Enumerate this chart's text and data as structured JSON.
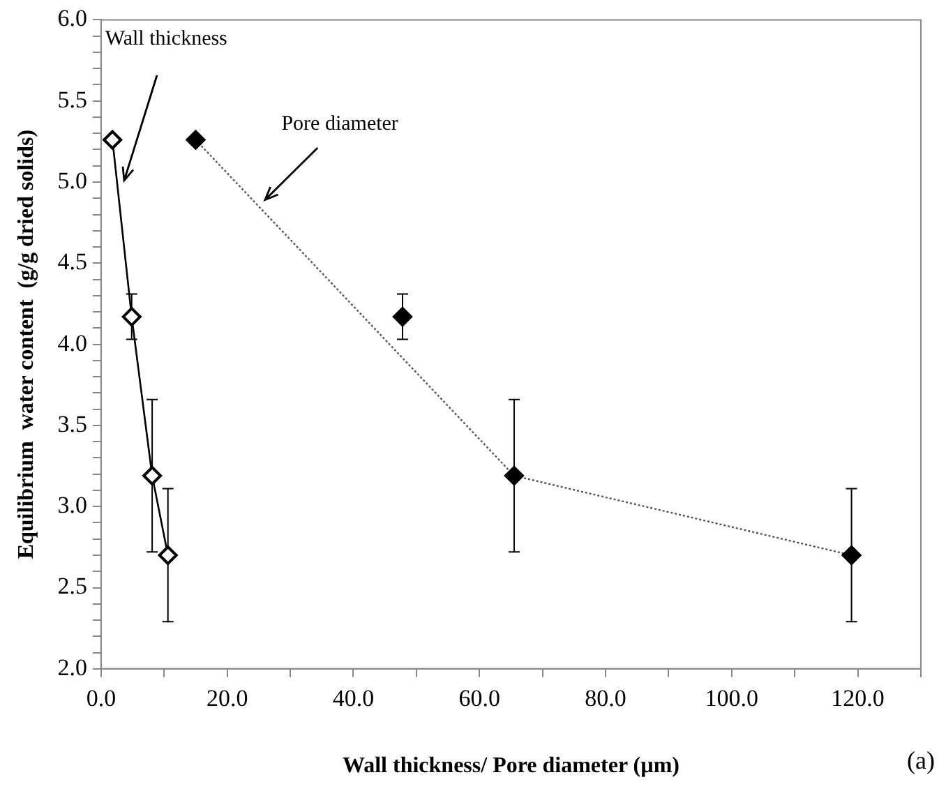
{
  "chart_data": {
    "type": "scatter",
    "xlabel": "Wall thickness/ Pore diameter (µm)",
    "ylabel": "Equilibrium  water content  (g/g dried solids)",
    "xlim": [
      0,
      130
    ],
    "xticks": [
      {
        "value": 0,
        "label": "0.0"
      },
      {
        "value": 10,
        "label": null
      },
      {
        "value": 20,
        "label": "20.0"
      },
      {
        "value": 30,
        "label": null
      },
      {
        "value": 40,
        "label": "40.0"
      },
      {
        "value": 50,
        "label": null
      },
      {
        "value": 60,
        "label": "60.0"
      },
      {
        "value": 70,
        "label": null
      },
      {
        "value": 80,
        "label": "80.0"
      },
      {
        "value": 90,
        "label": null
      },
      {
        "value": 100,
        "label": "100.0"
      },
      {
        "value": 110,
        "label": null
      },
      {
        "value": 120,
        "label": "120.0"
      },
      {
        "value": 130,
        "label": null
      }
    ],
    "ylim": [
      2,
      6
    ],
    "yticks": [
      {
        "value": 2,
        "label": "2.0"
      },
      {
        "value": 2.1,
        "label": null
      },
      {
        "value": 2.2,
        "label": null
      },
      {
        "value": 2.3,
        "label": null
      },
      {
        "value": 2.4,
        "label": null
      },
      {
        "value": 2.5,
        "label": "2.5"
      },
      {
        "value": 2.6,
        "label": null
      },
      {
        "value": 2.7,
        "label": null
      },
      {
        "value": 2.8,
        "label": null
      },
      {
        "value": 2.9,
        "label": null
      },
      {
        "value": 3,
        "label": "3.0"
      },
      {
        "value": 3.1,
        "label": null
      },
      {
        "value": 3.2,
        "label": null
      },
      {
        "value": 3.3,
        "label": null
      },
      {
        "value": 3.4,
        "label": null
      },
      {
        "value": 3.5,
        "label": "3.5"
      },
      {
        "value": 3.6,
        "label": null
      },
      {
        "value": 3.7,
        "label": null
      },
      {
        "value": 3.8,
        "label": null
      },
      {
        "value": 3.9,
        "label": null
      },
      {
        "value": 4,
        "label": "4.0"
      },
      {
        "value": 4.1,
        "label": null
      },
      {
        "value": 4.2,
        "label": null
      },
      {
        "value": 4.3,
        "label": null
      },
      {
        "value": 4.4,
        "label": null
      },
      {
        "value": 4.5,
        "label": "4.5"
      },
      {
        "value": 4.6,
        "label": null
      },
      {
        "value": 4.7,
        "label": null
      },
      {
        "value": 4.8,
        "label": null
      },
      {
        "value": 4.9,
        "label": null
      },
      {
        "value": 5,
        "label": "5.0"
      },
      {
        "value": 5.1,
        "label": null
      },
      {
        "value": 5.2,
        "label": null
      },
      {
        "value": 5.3,
        "label": null
      },
      {
        "value": 5.4,
        "label": null
      },
      {
        "value": 5.5,
        "label": "5.5"
      },
      {
        "value": 5.6,
        "label": null
      },
      {
        "value": 5.7,
        "label": null
      },
      {
        "value": 5.8,
        "label": null
      },
      {
        "value": 5.9,
        "label": null
      },
      {
        "value": 6,
        "label": "6.0"
      }
    ],
    "grid": false,
    "legend": false,
    "series": [
      {
        "type": "line",
        "color": "#000000",
        "marker": "diamond",
        "line_style": "solid",
        "x": [
          1.8,
          4.85,
          8.1,
          10.6
        ],
        "values": [
          5.26,
          4.17,
          3.19,
          2.7
        ],
        "errors": [
          null,
          0.14,
          0.47,
          0.41
        ]
      },
      {
        "color": "#000000",
        "marker": "diamond",
        "x": [
          15,
          47.8,
          65.5,
          119
        ],
        "values": [
          5.26,
          4.17,
          3.19,
          2.7
        ],
        "errors": [
          null,
          0.14,
          0.47,
          0.41
        ]
      },
      {
        "type": "line",
        "color": "#555555",
        "marker": "none",
        "line_style": "dotted",
        "x": [
          15,
          65.5,
          119
        ],
        "values": [
          5.26,
          3.19,
          2.7
        ]
      }
    ],
    "annotations": [
      "Wall thickness",
      "Pore diameter",
      "(a)"
    ]
  }
}
